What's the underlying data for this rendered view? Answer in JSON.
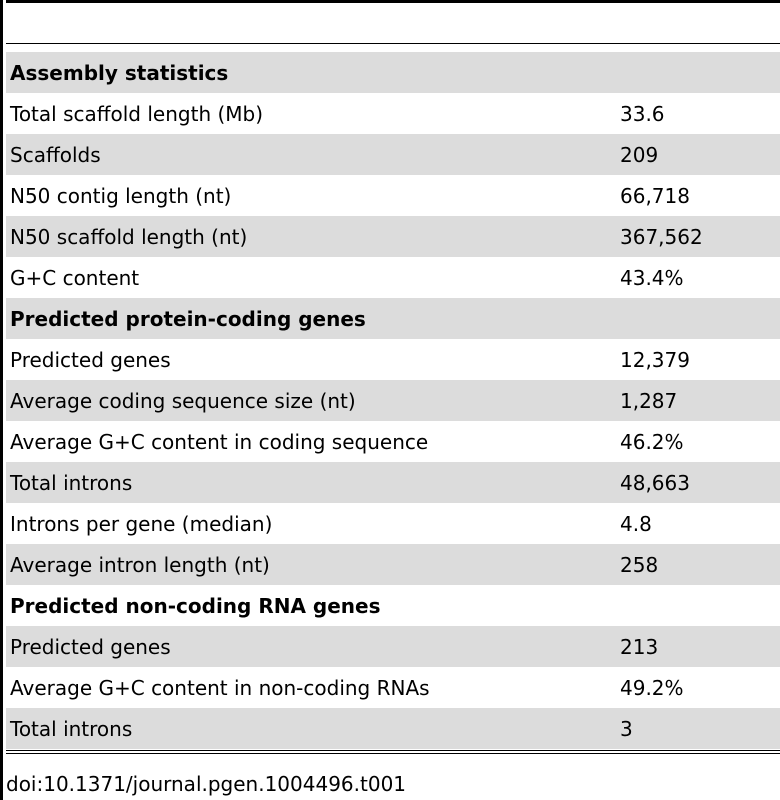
{
  "table": {
    "rows": [
      {
        "label": "Assembly statistics",
        "value": "",
        "type": "section"
      },
      {
        "label": "Total scaffold length (Mb)",
        "value": "33.6",
        "type": "data"
      },
      {
        "label": "Scaffolds",
        "value": "209",
        "type": "data"
      },
      {
        "label": "N50 contig length (nt)",
        "value": "66,718",
        "type": "data"
      },
      {
        "label": "N50 scaffold length (nt)",
        "value": "367,562",
        "type": "data"
      },
      {
        "label": "G+C content",
        "value": "43.4%",
        "type": "data"
      },
      {
        "label": "Predicted protein-coding genes",
        "value": "",
        "type": "section"
      },
      {
        "label": "Predicted genes",
        "value": "12,379",
        "type": "data"
      },
      {
        "label": "Average coding sequence size (nt)",
        "value": "1,287",
        "type": "data"
      },
      {
        "label": "Average G+C content in coding sequence",
        "value": "46.2%",
        "type": "data"
      },
      {
        "label": "Total introns",
        "value": "48,663",
        "type": "data"
      },
      {
        "label": "Introns per gene (median)",
        "value": "4.8",
        "type": "data"
      },
      {
        "label": "Average intron length (nt)",
        "value": "258",
        "type": "data"
      },
      {
        "label": "Predicted non-coding RNA genes",
        "value": "",
        "type": "section"
      },
      {
        "label": "Predicted genes",
        "value": "213",
        "type": "data"
      },
      {
        "label": "Average G+C content in non-coding RNAs",
        "value": "49.2%",
        "type": "data"
      },
      {
        "label": "Total introns",
        "value": "3",
        "type": "data"
      }
    ]
  },
  "footer": {
    "doi": "doi:10.1371/journal.pgen.1004496.t001"
  },
  "colors": {
    "shade": "#dcdcdc",
    "rule": "#000000"
  }
}
